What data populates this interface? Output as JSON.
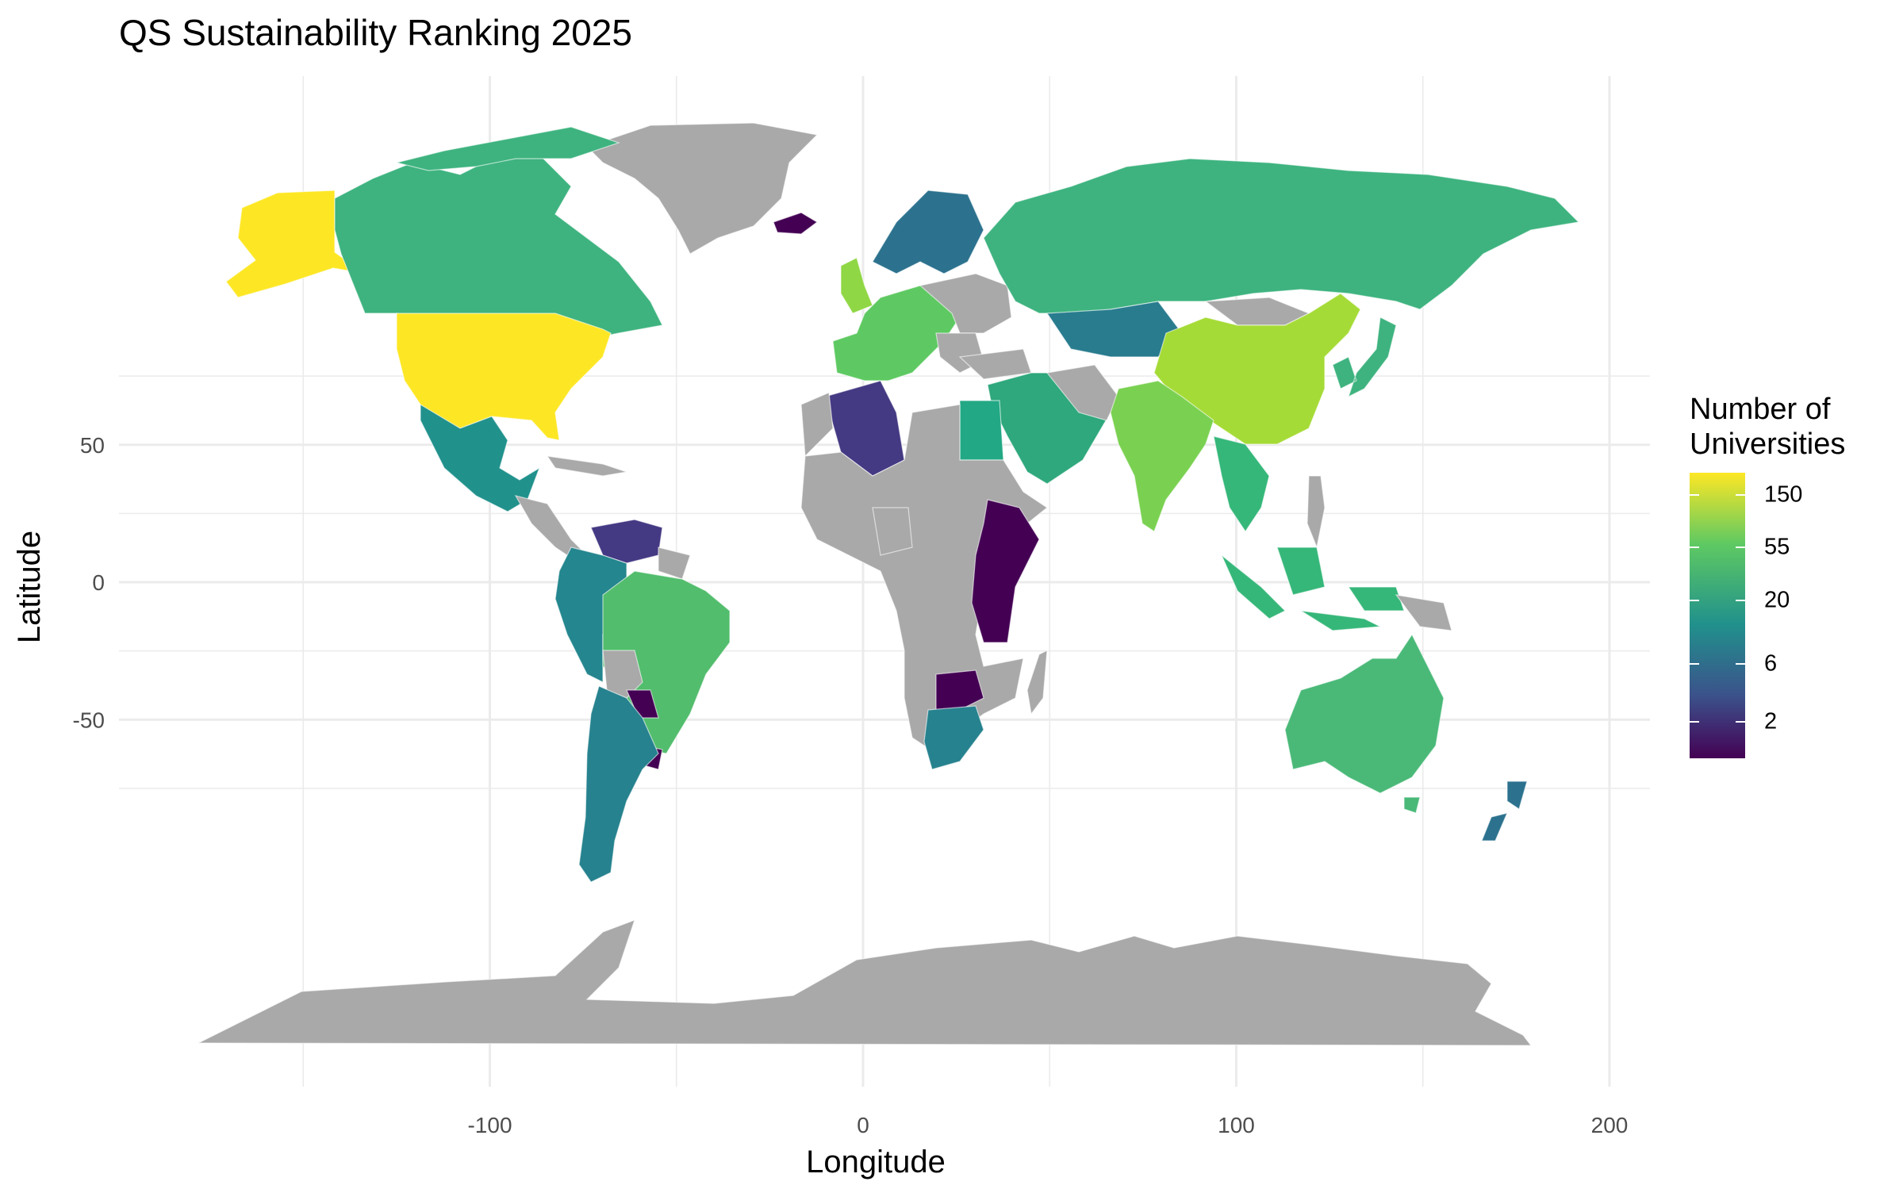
{
  "title": "QS Sustainability Ranking 2025",
  "chart_data": {
    "type": "choropleth-map",
    "xlabel": "Longitude",
    "ylabel": "Latitude",
    "xlim": [
      -200,
      210
    ],
    "ylim": [
      -94,
      94
    ],
    "x_ticks": [
      -100,
      0,
      100,
      200
    ],
    "x_tick_labels": [
      "-100",
      "0",
      "100",
      "200"
    ],
    "y_ticks": [
      -50,
      0,
      50
    ],
    "y_tick_labels": [
      "-50",
      "0",
      "50"
    ],
    "grid": true,
    "legend": {
      "title_line1": "Number of",
      "title_line2": "Universities",
      "position": "right",
      "scale": "log",
      "range": [
        1,
        228
      ],
      "breaks": [
        150,
        55,
        20,
        6,
        2
      ],
      "break_labels": [
        "150",
        "55",
        "20",
        "6",
        "2"
      ],
      "palette": [
        "#440154",
        "#3b528b",
        "#21918c",
        "#5ec962",
        "#fde725"
      ]
    },
    "missing_color": "#a9a9a9",
    "regions": [
      {
        "name": "United States",
        "value": 228,
        "color": "#fde725"
      },
      {
        "name": "Alaska",
        "value": 228,
        "color": "#fde725"
      },
      {
        "name": "Canada",
        "value": 32,
        "color": "#3eb37f"
      },
      {
        "name": "Mexico",
        "value": 14,
        "color": "#21918c"
      },
      {
        "name": "Greenland",
        "value": null,
        "color": "#a9a9a9"
      },
      {
        "name": "Brazil",
        "value": 40,
        "color": "#52bd6d"
      },
      {
        "name": "Colombia / Peru",
        "value": 14,
        "color": "#24868e"
      },
      {
        "name": "Argentina / Chile",
        "value": 12,
        "color": "#26828e"
      },
      {
        "name": "Venezuela",
        "value": 3,
        "color": "#443983"
      },
      {
        "name": "Paraguay / Uruguay",
        "value": 1,
        "color": "#440154"
      },
      {
        "name": "Western Europe",
        "value": 55,
        "color": "#5ec962"
      },
      {
        "name": "United Kingdom",
        "value": 90,
        "color": "#8fd744"
      },
      {
        "name": "Nordics / Baltics",
        "value": 8,
        "color": "#2c728e"
      },
      {
        "name": "Russia",
        "value": 30,
        "color": "#3eb37f"
      },
      {
        "name": "Central Asia",
        "value": 10,
        "color": "#287c8e"
      },
      {
        "name": "China",
        "value": 100,
        "color": "#a5db36"
      },
      {
        "name": "India",
        "value": 70,
        "color": "#7ad151"
      },
      {
        "name": "Japan / Korea",
        "value": 35,
        "color": "#3eb37f"
      },
      {
        "name": "Southeast Asia",
        "value": 25,
        "color": "#35b779"
      },
      {
        "name": "Middle East",
        "value": 22,
        "color": "#2ea87c"
      },
      {
        "name": "Algeria",
        "value": 3,
        "color": "#443983"
      },
      {
        "name": "Egypt",
        "value": 20,
        "color": "#22a884"
      },
      {
        "name": "East Africa",
        "value": 1,
        "color": "#440154"
      },
      {
        "name": "Zimbabwe",
        "value": 1,
        "color": "#440154"
      },
      {
        "name": "South Africa",
        "value": 12,
        "color": "#26828e"
      },
      {
        "name": "Australia",
        "value": 35,
        "color": "#4ab978"
      },
      {
        "name": "New Zealand",
        "value": 8,
        "color": "#2c728e"
      },
      {
        "name": "Iceland",
        "value": 1,
        "color": "#440154"
      },
      {
        "name": "Africa (other)",
        "value": null,
        "color": "#a9a9a9"
      },
      {
        "name": "Antarctica",
        "value": null,
        "color": "#a9a9a9"
      }
    ]
  }
}
